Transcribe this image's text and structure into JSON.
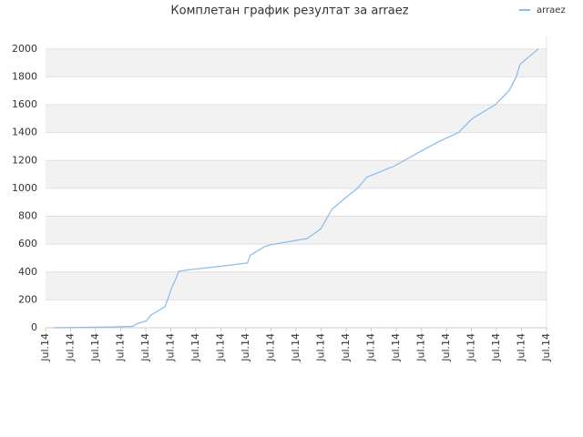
{
  "chart_data": {
    "type": "line",
    "title": "Комплетан график резултат за arraez",
    "x": [
      0.33,
      2.5,
      3.48,
      3.66,
      4.03,
      4.2,
      4.47,
      4.76,
      4.87,
      5.02,
      5.2,
      5.31,
      5.68,
      6.96,
      8.06,
      8.17,
      8.72,
      8.97,
      10.44,
      10.99,
      11.43,
      12.09,
      12.45,
      12.82,
      13.92,
      15.02,
      15.75,
      16.48,
      17.03,
      17.95,
      18.5,
      18.79,
      18.94,
      19.67
    ],
    "series": [
      {
        "name": "arraez",
        "color": "#88bbee",
        "values": [
          0,
          5,
          10,
          30,
          50,
          90,
          120,
          150,
          200,
          280,
          350,
          405,
          415,
          440,
          465,
          520,
          580,
          595,
          640,
          710,
          850,
          950,
          1000,
          1080,
          1160,
          1270,
          1340,
          1400,
          1500,
          1600,
          1700,
          1800,
          1890,
          2000
        ]
      }
    ],
    "xlim": [
      0,
      20
    ],
    "xticks": [
      {
        "value": 0,
        "label": "Jul.14"
      },
      {
        "value": 1,
        "label": "Jul.14"
      },
      {
        "value": 2,
        "label": "Jul.14"
      },
      {
        "value": 3,
        "label": "Jul.14"
      },
      {
        "value": 4,
        "label": "Jul.14"
      },
      {
        "value": 5,
        "label": "Jul.14"
      },
      {
        "value": 6,
        "label": "Jul.14"
      },
      {
        "value": 7,
        "label": "Jul.14"
      },
      {
        "value": 8,
        "label": "Jul.14"
      },
      {
        "value": 9,
        "label": "Jul.14"
      },
      {
        "value": 10,
        "label": "Jul.14"
      },
      {
        "value": 11,
        "label": "Jul.14"
      },
      {
        "value": 12,
        "label": "Jul.14"
      },
      {
        "value": 13,
        "label": "Jul.14"
      },
      {
        "value": 14,
        "label": "Jul.14"
      },
      {
        "value": 15,
        "label": "Jul.14"
      },
      {
        "value": 16,
        "label": "Jul.14"
      },
      {
        "value": 17,
        "label": "Jul.14"
      },
      {
        "value": 18,
        "label": "Jul.14"
      },
      {
        "value": 19,
        "label": "Jul.14"
      },
      {
        "value": 20,
        "label": "Jul.14"
      }
    ],
    "ylim": [
      0,
      2090
    ],
    "yticks": [
      0,
      200,
      400,
      600,
      800,
      1000,
      1200,
      1400,
      1600,
      1800,
      2000
    ],
    "grid": true,
    "legend": "top-right"
  }
}
